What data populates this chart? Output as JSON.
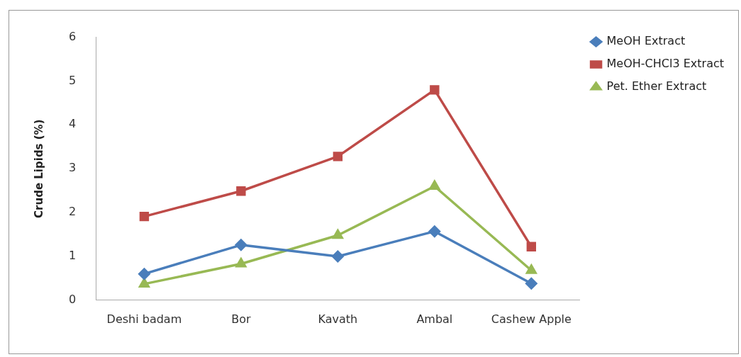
{
  "chart_data": {
    "type": "line",
    "ylabel": "Crude Lipids (%)",
    "categories": [
      "Deshi badam",
      "Bor",
      "Kavath",
      "Ambal",
      "Cashew Apple"
    ],
    "series": [
      {
        "name": "MeOH Extract",
        "color": "#4a7ebb",
        "marker": "diamond",
        "values": [
          0.6,
          1.26,
          1.0,
          1.57,
          0.38
        ]
      },
      {
        "name": "MeOH-CHCl3 Extract",
        "color": "#be4b48",
        "marker": "square",
        "values": [
          1.91,
          2.49,
          3.28,
          4.8,
          1.22
        ]
      },
      {
        "name": "Pet. Ether Extract",
        "color": "#98b954",
        "marker": "triangle",
        "values": [
          0.37,
          0.83,
          1.48,
          2.6,
          0.68
        ]
      }
    ],
    "ylim": [
      0,
      6
    ],
    "yticks": [
      0,
      1,
      2,
      3,
      4,
      5,
      6
    ],
    "grid": false,
    "legend": "top right"
  }
}
